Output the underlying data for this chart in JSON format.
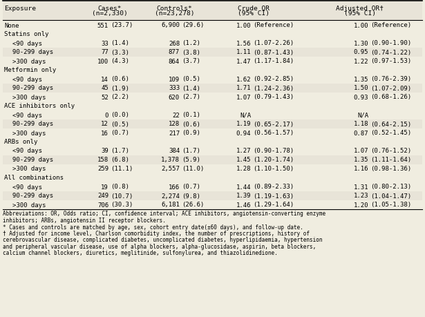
{
  "col_headers_line1": [
    "Exposure",
    "Cases*",
    "Controls*",
    "Crude OR",
    "Adjusted OR†"
  ],
  "col_headers_line2": [
    "",
    "(n=2,330)",
    "(n=23,278)",
    "(95% CI)",
    "(95% CI)"
  ],
  "rows": [
    {
      "label": "None",
      "indent": false,
      "category": false,
      "cases_n": "551",
      "cases_p": "(23.7)",
      "ctrl_n": "6,900",
      "ctrl_p": "(29.6)",
      "crude_v": "1.00",
      "crude_ci": "(Reference)",
      "adj_v": "1.00",
      "adj_ci": "(Reference)"
    },
    {
      "label": "Statins only",
      "indent": false,
      "category": true,
      "cases_n": "",
      "cases_p": "",
      "ctrl_n": "",
      "ctrl_p": "",
      "crude_v": "",
      "crude_ci": "",
      "adj_v": "",
      "adj_ci": ""
    },
    {
      "label": "<90 days",
      "indent": true,
      "category": false,
      "cases_n": "33",
      "cases_p": "(1.4)",
      "ctrl_n": "268",
      "ctrl_p": "(1.2)",
      "crude_v": "1.56",
      "crude_ci": "(1.07-2.26)",
      "adj_v": "1.30",
      "adj_ci": "(0.90-1.90)"
    },
    {
      "label": "90-299 days",
      "indent": true,
      "category": false,
      "cases_n": "77",
      "cases_p": "(3.3)",
      "ctrl_n": "877",
      "ctrl_p": "(3.8)",
      "crude_v": "1.11",
      "crude_ci": "(0.87-1.43)",
      "adj_v": "0.95",
      "adj_ci": "(0.74-1.22)"
    },
    {
      "label": ">300 days",
      "indent": true,
      "category": false,
      "cases_n": "100",
      "cases_p": "(4.3)",
      "ctrl_n": "864",
      "ctrl_p": "(3.7)",
      "crude_v": "1.47",
      "crude_ci": "(1.17-1.84)",
      "adj_v": "1.22",
      "adj_ci": "(0.97-1.53)"
    },
    {
      "label": "Metformin only",
      "indent": false,
      "category": true,
      "cases_n": "",
      "cases_p": "",
      "ctrl_n": "",
      "ctrl_p": "",
      "crude_v": "",
      "crude_ci": "",
      "adj_v": "",
      "adj_ci": ""
    },
    {
      "label": "<90 days",
      "indent": true,
      "category": false,
      "cases_n": "14",
      "cases_p": "(0.6)",
      "ctrl_n": "109",
      "ctrl_p": "(0.5)",
      "crude_v": "1.62",
      "crude_ci": "(0.92-2.85)",
      "adj_v": "1.35",
      "adj_ci": "(0.76-2.39)"
    },
    {
      "label": "90-299 days",
      "indent": true,
      "category": false,
      "cases_n": "45",
      "cases_p": "(1.9)",
      "ctrl_n": "333",
      "ctrl_p": "(1.4)",
      "crude_v": "1.71",
      "crude_ci": "(1.24-2.36)",
      "adj_v": "1.50",
      "adj_ci": "(1.07-2.09)"
    },
    {
      "label": ">300 days",
      "indent": true,
      "category": false,
      "cases_n": "52",
      "cases_p": "(2.2)",
      "ctrl_n": "620",
      "ctrl_p": "(2.7)",
      "crude_v": "1.07",
      "crude_ci": "(0.79-1.43)",
      "adj_v": "0.93",
      "adj_ci": "(0.68-1.26)"
    },
    {
      "label": "ACE inhibitors only",
      "indent": false,
      "category": true,
      "cases_n": "",
      "cases_p": "",
      "ctrl_n": "",
      "ctrl_p": "",
      "crude_v": "",
      "crude_ci": "",
      "adj_v": "",
      "adj_ci": ""
    },
    {
      "label": "<90 days",
      "indent": true,
      "category": false,
      "cases_n": "0",
      "cases_p": "(0.0)",
      "ctrl_n": "22",
      "ctrl_p": "(0.1)",
      "crude_v": "N/A",
      "crude_ci": "",
      "adj_v": "N/A",
      "adj_ci": ""
    },
    {
      "label": "90-299 days",
      "indent": true,
      "category": false,
      "cases_n": "12",
      "cases_p": "(0.5)",
      "ctrl_n": "128",
      "ctrl_p": "(0.6)",
      "crude_v": "1.19",
      "crude_ci": "(0.65-2.17)",
      "adj_v": "1.18",
      "adj_ci": "(0.64-2.15)"
    },
    {
      "label": ">300 days",
      "indent": true,
      "category": false,
      "cases_n": "16",
      "cases_p": "(0.7)",
      "ctrl_n": "217",
      "ctrl_p": "(0.9)",
      "crude_v": "0.94",
      "crude_ci": "(0.56-1.57)",
      "adj_v": "0.87",
      "adj_ci": "(0.52-1.45)"
    },
    {
      "label": "ARBs only",
      "indent": false,
      "category": true,
      "cases_n": "",
      "cases_p": "",
      "ctrl_n": "",
      "ctrl_p": "",
      "crude_v": "",
      "crude_ci": "",
      "adj_v": "",
      "adj_ci": ""
    },
    {
      "label": "<90 days",
      "indent": true,
      "category": false,
      "cases_n": "39",
      "cases_p": "(1.7)",
      "ctrl_n": "384",
      "ctrl_p": "(1.7)",
      "crude_v": "1.27",
      "crude_ci": "(0.90-1.78)",
      "adj_v": "1.07",
      "adj_ci": "(0.76-1.52)"
    },
    {
      "label": "90-299 days",
      "indent": true,
      "category": false,
      "cases_n": "158",
      "cases_p": "(6.8)",
      "ctrl_n": "1,378",
      "ctrl_p": "(5.9)",
      "crude_v": "1.45",
      "crude_ci": "(1.20-1.74)",
      "adj_v": "1.35",
      "adj_ci": "(1.11-1.64)"
    },
    {
      "label": ">300 days",
      "indent": true,
      "category": false,
      "cases_n": "259",
      "cases_p": "(11.1)",
      "ctrl_n": "2,557",
      "ctrl_p": "(11.0)",
      "crude_v": "1.28",
      "crude_ci": "(1.10-1.50)",
      "adj_v": "1.16",
      "adj_ci": "(0.98-1.36)"
    },
    {
      "label": "All combinations",
      "indent": false,
      "category": true,
      "cases_n": "",
      "cases_p": "",
      "ctrl_n": "",
      "ctrl_p": "",
      "crude_v": "",
      "crude_ci": "",
      "adj_v": "",
      "adj_ci": ""
    },
    {
      "label": "<90 days",
      "indent": true,
      "category": false,
      "cases_n": "19",
      "cases_p": "(0.8)",
      "ctrl_n": "166",
      "ctrl_p": "(0.7)",
      "crude_v": "1.44",
      "crude_ci": "(0.89-2.33)",
      "adj_v": "1.31",
      "adj_ci": "(0.80-2.13)"
    },
    {
      "label": "90-299 days",
      "indent": true,
      "category": false,
      "cases_n": "249",
      "cases_p": "(10.7)",
      "ctrl_n": "2,274",
      "ctrl_p": "(9.8)",
      "crude_v": "1.39",
      "crude_ci": "(1.19-1.63)",
      "adj_v": "1.23",
      "adj_ci": "(1.04-1.47)"
    },
    {
      "label": ">300 days",
      "indent": true,
      "category": false,
      "cases_n": "706",
      "cases_p": "(30.3)",
      "ctrl_n": "6,181",
      "ctrl_p": "(26.6)",
      "crude_v": "1.46",
      "crude_ci": "(1.29-1.64)",
      "adj_v": "1.20",
      "adj_ci": "(1.05-1.38)"
    }
  ],
  "footnote_lines": [
    "Abbreviations: OR, Odds ratio; CI, confidence interval; ACE inhibitors, angiotensin-converting enzyme",
    "inhibitors; ARBs, angiotensin II receptor blockers.",
    "* Cases and controls are matched by age, sex, cohort entry date(±60 days), and follow-up date.",
    "† Adjusted for income level, Charlson comorbidity index, the number of prescriptions, history of",
    "cerebrovascular disease, complicated diabetes, uncomplicated diabetes, hyperlipidaemia, hypertension",
    "and peripheral vascular disease, use of alpha blockers, alpha-glucosidase, aspirin, beta blockers,",
    "calcium channel blockers, diuretics, meglitinide, sulfonylurea, and thiazolidinedione."
  ],
  "header_bg": "#e8e4d8",
  "bg_color": "#f0ede0",
  "row_alt_color": "#e8e4d8",
  "font_size": 6.5,
  "header_font_size": 6.8
}
